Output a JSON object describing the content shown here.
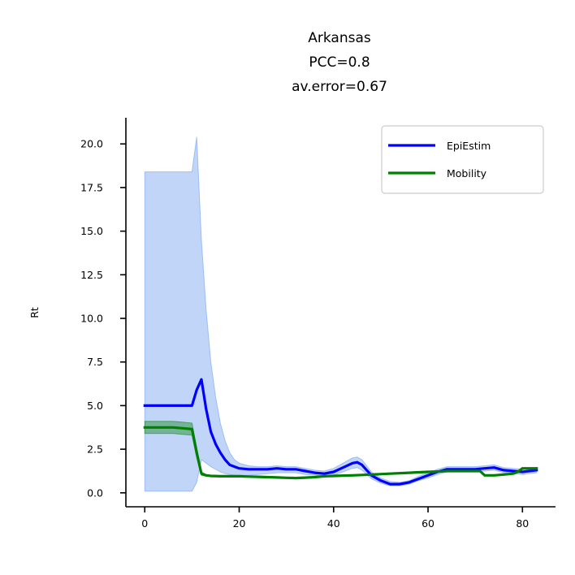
{
  "chart_data": {
    "type": "line",
    "title_lines": [
      "Arkansas",
      "PCC=0.8",
      "av.error=0.67"
    ],
    "xlabel": "",
    "ylabel": "Rt",
    "xlim": [
      -4,
      87
    ],
    "ylim": [
      -0.8,
      21.5
    ],
    "x_ticks": [
      0,
      20,
      40,
      60,
      80
    ],
    "x_tick_labels": [
      "0",
      "20",
      "40",
      "60",
      "80"
    ],
    "y_ticks": [
      0,
      2.5,
      5,
      7.5,
      10,
      12.5,
      15,
      17.5,
      20
    ],
    "y_tick_labels": [
      "0.0",
      "2.5",
      "5.0",
      "7.5",
      "10.0",
      "12.5",
      "15.0",
      "17.5",
      "20.0"
    ],
    "grid": false,
    "legend_position": "top-right",
    "series": [
      {
        "name": "EpiEstim",
        "color": "#0000ff",
        "x": [
          0,
          2,
          4,
          6,
          8,
          10,
          11,
          12,
          13,
          14,
          15,
          16,
          17,
          18,
          19,
          20,
          22,
          24,
          26,
          28,
          30,
          32,
          34,
          36,
          38,
          40,
          42,
          44,
          45,
          46,
          47,
          48,
          50,
          52,
          54,
          56,
          58,
          60,
          62,
          64,
          66,
          68,
          70,
          72,
          74,
          76,
          78,
          80,
          83
        ],
        "values": [
          5.0,
          5.0,
          5.0,
          5.0,
          5.0,
          5.0,
          5.9,
          6.5,
          4.8,
          3.5,
          2.8,
          2.3,
          1.9,
          1.6,
          1.5,
          1.4,
          1.35,
          1.35,
          1.35,
          1.4,
          1.35,
          1.35,
          1.25,
          1.15,
          1.1,
          1.2,
          1.45,
          1.7,
          1.75,
          1.6,
          1.3,
          1.0,
          0.7,
          0.5,
          0.5,
          0.6,
          0.8,
          1.0,
          1.2,
          1.35,
          1.35,
          1.35,
          1.35,
          1.4,
          1.45,
          1.3,
          1.25,
          1.2,
          1.3
        ]
      },
      {
        "name": "Mobility",
        "color": "#008000",
        "x": [
          0,
          2,
          4,
          6,
          8,
          10,
          11,
          12,
          13,
          14,
          16,
          18,
          20,
          22,
          24,
          26,
          28,
          30,
          32,
          34,
          36,
          38,
          40,
          44,
          48,
          52,
          56,
          60,
          62,
          64,
          66,
          68,
          70,
          71,
          72,
          74,
          76,
          78,
          79,
          80,
          83
        ],
        "values": [
          3.75,
          3.75,
          3.75,
          3.75,
          3.7,
          3.65,
          2.3,
          1.1,
          1.0,
          0.97,
          0.95,
          0.95,
          0.95,
          0.93,
          0.92,
          0.9,
          0.88,
          0.86,
          0.85,
          0.87,
          0.9,
          0.95,
          0.97,
          1.0,
          1.05,
          1.1,
          1.15,
          1.2,
          1.22,
          1.25,
          1.25,
          1.25,
          1.25,
          1.25,
          1.0,
          1.0,
          1.05,
          1.1,
          1.2,
          1.4,
          1.4
        ]
      }
    ],
    "bands": [
      {
        "series": "EpiEstim",
        "color": "#6495ed",
        "x": [
          0,
          2,
          4,
          6,
          8,
          10,
          11,
          12,
          13,
          14,
          15,
          16,
          17,
          18,
          19,
          20,
          22,
          24,
          26,
          28,
          30,
          32,
          34,
          36,
          38,
          40,
          42,
          44,
          45,
          46,
          47,
          48,
          50,
          52,
          54,
          56,
          58,
          60,
          62,
          64,
          66,
          68,
          70,
          72,
          74,
          76,
          78,
          80,
          83
        ],
        "upper": [
          18.4,
          18.4,
          18.4,
          18.4,
          18.4,
          18.4,
          20.4,
          14.5,
          10.5,
          7.5,
          5.5,
          4.0,
          3.0,
          2.3,
          1.9,
          1.7,
          1.55,
          1.5,
          1.5,
          1.55,
          1.5,
          1.5,
          1.4,
          1.3,
          1.25,
          1.4,
          1.7,
          2.0,
          2.05,
          1.9,
          1.55,
          1.2,
          0.85,
          0.65,
          0.6,
          0.7,
          0.95,
          1.15,
          1.35,
          1.5,
          1.5,
          1.5,
          1.5,
          1.55,
          1.6,
          1.45,
          1.4,
          1.35,
          1.45
        ],
        "lower": [
          0.1,
          0.1,
          0.1,
          0.1,
          0.1,
          0.1,
          0.6,
          1.9,
          1.7,
          1.5,
          1.35,
          1.2,
          1.1,
          1.05,
          1.0,
          1.0,
          1.0,
          1.05,
          1.1,
          1.15,
          1.15,
          1.15,
          1.05,
          1.0,
          0.95,
          1.0,
          1.2,
          1.4,
          1.45,
          1.3,
          1.05,
          0.8,
          0.55,
          0.4,
          0.4,
          0.5,
          0.7,
          0.85,
          1.05,
          1.2,
          1.2,
          1.2,
          1.2,
          1.25,
          1.3,
          1.15,
          1.1,
          1.05,
          1.15
        ]
      },
      {
        "series": "Mobility",
        "color": "#008000",
        "x": [
          0,
          2,
          4,
          6,
          8,
          10,
          11,
          12,
          13,
          14,
          16,
          18,
          20
        ],
        "upper": [
          4.1,
          4.1,
          4.1,
          4.1,
          4.05,
          4.0,
          2.6,
          1.2,
          1.05,
          1.0,
          0.98,
          0.97,
          0.96
        ],
        "lower": [
          3.4,
          3.4,
          3.4,
          3.4,
          3.35,
          3.3,
          2.0,
          1.0,
          0.95,
          0.94,
          0.93,
          0.93,
          0.94
        ]
      }
    ]
  }
}
